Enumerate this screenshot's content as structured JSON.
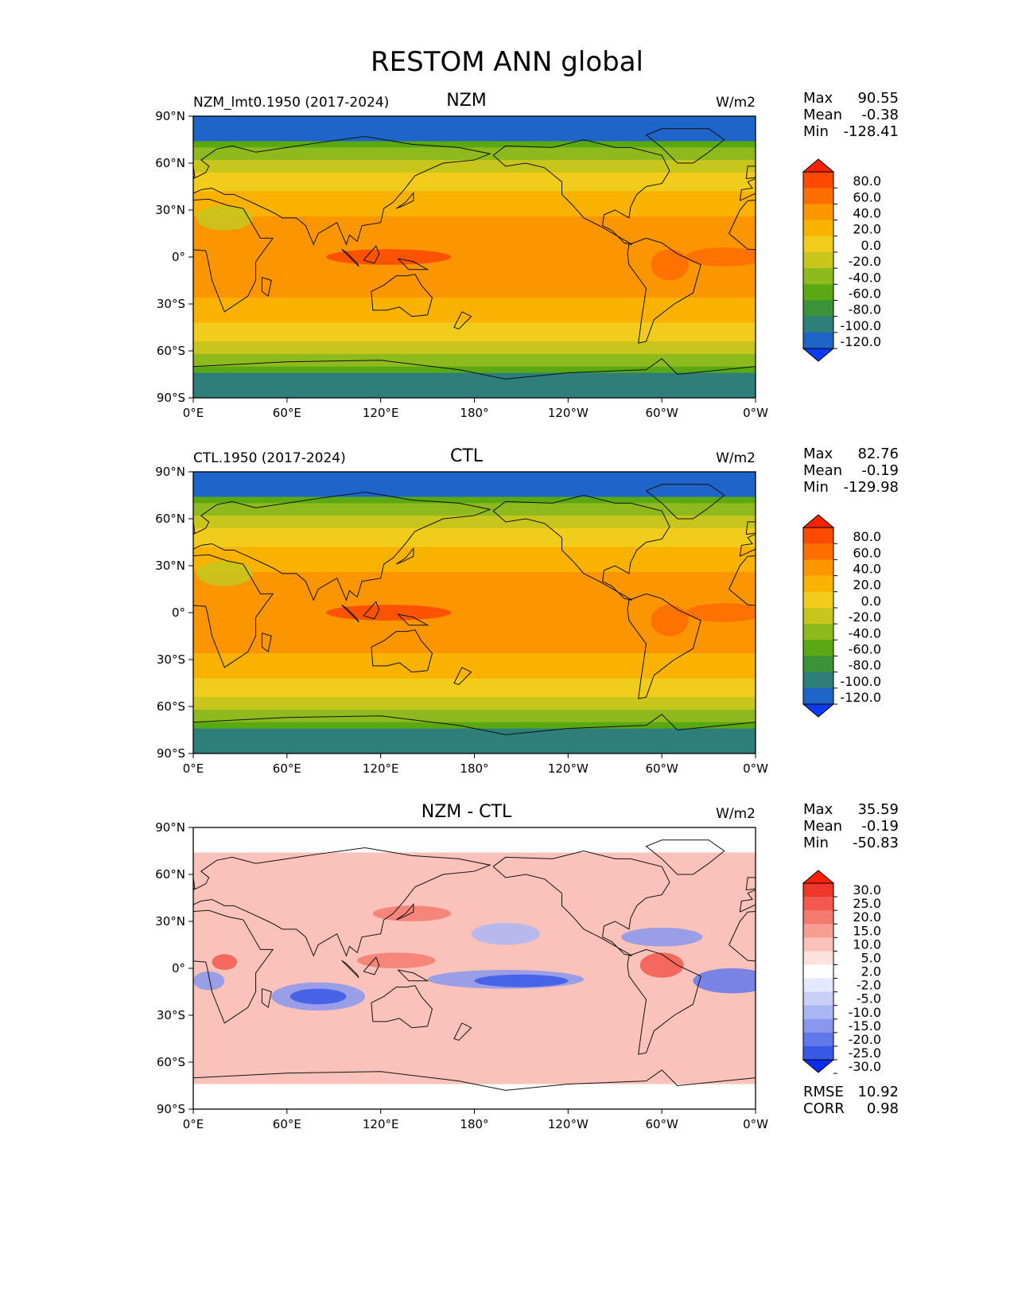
{
  "figure": {
    "title": "RESTOM ANN global"
  },
  "chart_data": [
    {
      "type": "heatmap",
      "title": "NZM",
      "left_label": "NZM_lmt0.1950 (2017-2024)",
      "units": "W/m2",
      "stats": {
        "max": "90.55",
        "mean": "-0.38",
        "min": "-128.41",
        "max_label": "Max",
        "mean_label": "Mean",
        "min_label": "Min"
      },
      "x_ticks": [
        "0°E",
        "60°E",
        "120°E",
        "180°",
        "120°W",
        "60°W",
        "0°W"
      ],
      "y_ticks": [
        "90°N",
        "60°N",
        "30°N",
        "0°",
        "30°S",
        "60°S",
        "90°S"
      ],
      "xlim": [
        0,
        360
      ],
      "ylim": [
        -90,
        90
      ],
      "colorbar": {
        "levels": [
          "80.0",
          "60.0",
          "40.0",
          "20.0",
          "0.0",
          "-20.0",
          "-40.0",
          "-60.0",
          "-80.0",
          "-100.0",
          "-120.0"
        ],
        "colors": [
          "#ff2200",
          "#fd4a00",
          "#fd6e00",
          "#fb9500",
          "#f9b200",
          "#f1cc1a",
          "#c8c51c",
          "#8fba1e",
          "#5aa812",
          "#3b9238",
          "#2e7f7a",
          "#1f64c8",
          "#0b3cf5"
        ]
      }
    },
    {
      "type": "heatmap",
      "title": "CTL",
      "left_label": "CTL.1950 (2017-2024)",
      "units": "W/m2",
      "stats": {
        "max": "82.76",
        "mean": "-0.19",
        "min": "-129.98",
        "max_label": "Max",
        "mean_label": "Mean",
        "min_label": "Min"
      },
      "x_ticks": [
        "0°E",
        "60°E",
        "120°E",
        "180°",
        "120°W",
        "60°W",
        "0°W"
      ],
      "y_ticks": [
        "90°N",
        "60°N",
        "30°N",
        "0°",
        "30°S",
        "60°S",
        "90°S"
      ],
      "xlim": [
        0,
        360
      ],
      "ylim": [
        -90,
        90
      ],
      "colorbar": {
        "levels": [
          "80.0",
          "60.0",
          "40.0",
          "20.0",
          "0.0",
          "-20.0",
          "-40.0",
          "-60.0",
          "-80.0",
          "-100.0",
          "-120.0"
        ],
        "colors": [
          "#ff2200",
          "#fd4a00",
          "#fd6e00",
          "#fb9500",
          "#f9b200",
          "#f1cc1a",
          "#c8c51c",
          "#8fba1e",
          "#5aa812",
          "#3b9238",
          "#2e7f7a",
          "#1f64c8",
          "#0b3cf5"
        ]
      }
    },
    {
      "type": "heatmap",
      "title": "NZM - CTL",
      "left_label": "",
      "units": "W/m2",
      "stats": {
        "max": "35.59",
        "mean": "-0.19",
        "min": "-50.83",
        "max_label": "Max",
        "mean_label": "Mean",
        "min_label": "Min"
      },
      "extra_stats": [
        {
          "label": "RMSE",
          "value": "10.92"
        },
        {
          "label": "CORR",
          "value": "0.98"
        }
      ],
      "x_ticks": [
        "0°E",
        "60°E",
        "120°E",
        "180°",
        "120°W",
        "60°W",
        "0°W"
      ],
      "y_ticks": [
        "90°N",
        "60°N",
        "30°N",
        "0°",
        "30°S",
        "60°S",
        "90°S"
      ],
      "xlim": [
        0,
        360
      ],
      "ylim": [
        -90,
        90
      ],
      "colorbar": {
        "levels": [
          "30.0",
          "25.0",
          "20.0",
          "15.0",
          "10.0",
          "5.0",
          "2.0",
          "-2.0",
          "-5.0",
          "-10.0",
          "-15.0",
          "-20.0",
          "-25.0",
          "-30.0"
        ],
        "colors": [
          "#ff2200",
          "#f0362a",
          "#f2584c",
          "#f47a6e",
          "#f79e92",
          "#fac2b8",
          "#fde2dc",
          "#ffffff",
          "#e4e8fb",
          "#c8d0f8",
          "#aab6f3",
          "#8898ee",
          "#6078ea",
          "#3858e8",
          "#0b2cf5"
        ]
      }
    }
  ]
}
